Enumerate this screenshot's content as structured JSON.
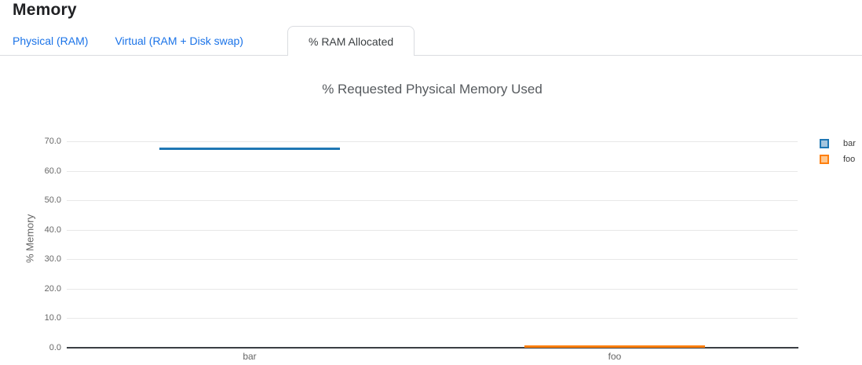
{
  "header": {
    "title": "Memory"
  },
  "tabs": [
    {
      "label": "Physical (RAM)",
      "name": "physical-ram",
      "active": false
    },
    {
      "label": "Virtual (RAM + Disk swap)",
      "name": "virtual-ram-disk-swap",
      "active": false
    },
    {
      "label": "% RAM Allocated",
      "name": "percent-ram-allocated",
      "active": true
    }
  ],
  "colors": {
    "tab_link": "#1a73e8",
    "tab_active_text": "#3c4043",
    "tab_border": "#dadce0",
    "grid": "#e8e8e8",
    "axis": "#3b3f44",
    "text_muted": "#666666"
  },
  "chart_data": {
    "type": "bar",
    "title": "% Requested Physical Memory Used",
    "xlabel": "",
    "ylabel": "% Memory",
    "categories": [
      "bar",
      "foo"
    ],
    "series": [
      {
        "name": "bar",
        "color": "#1f77b4",
        "swatch_fill": "#a3c5de",
        "values": [
          67.6,
          null
        ]
      },
      {
        "name": "foo",
        "color": "#ff7f0e",
        "swatch_fill": "#ffc68c",
        "values": [
          null,
          0.4
        ]
      }
    ],
    "ylim": [
      0,
      74
    ],
    "ytick_labels": [
      "0.0",
      "10.0",
      "20.0",
      "30.0",
      "40.0",
      "50.0",
      "60.0",
      "70.0"
    ],
    "grid": true,
    "legend_position": "right"
  }
}
